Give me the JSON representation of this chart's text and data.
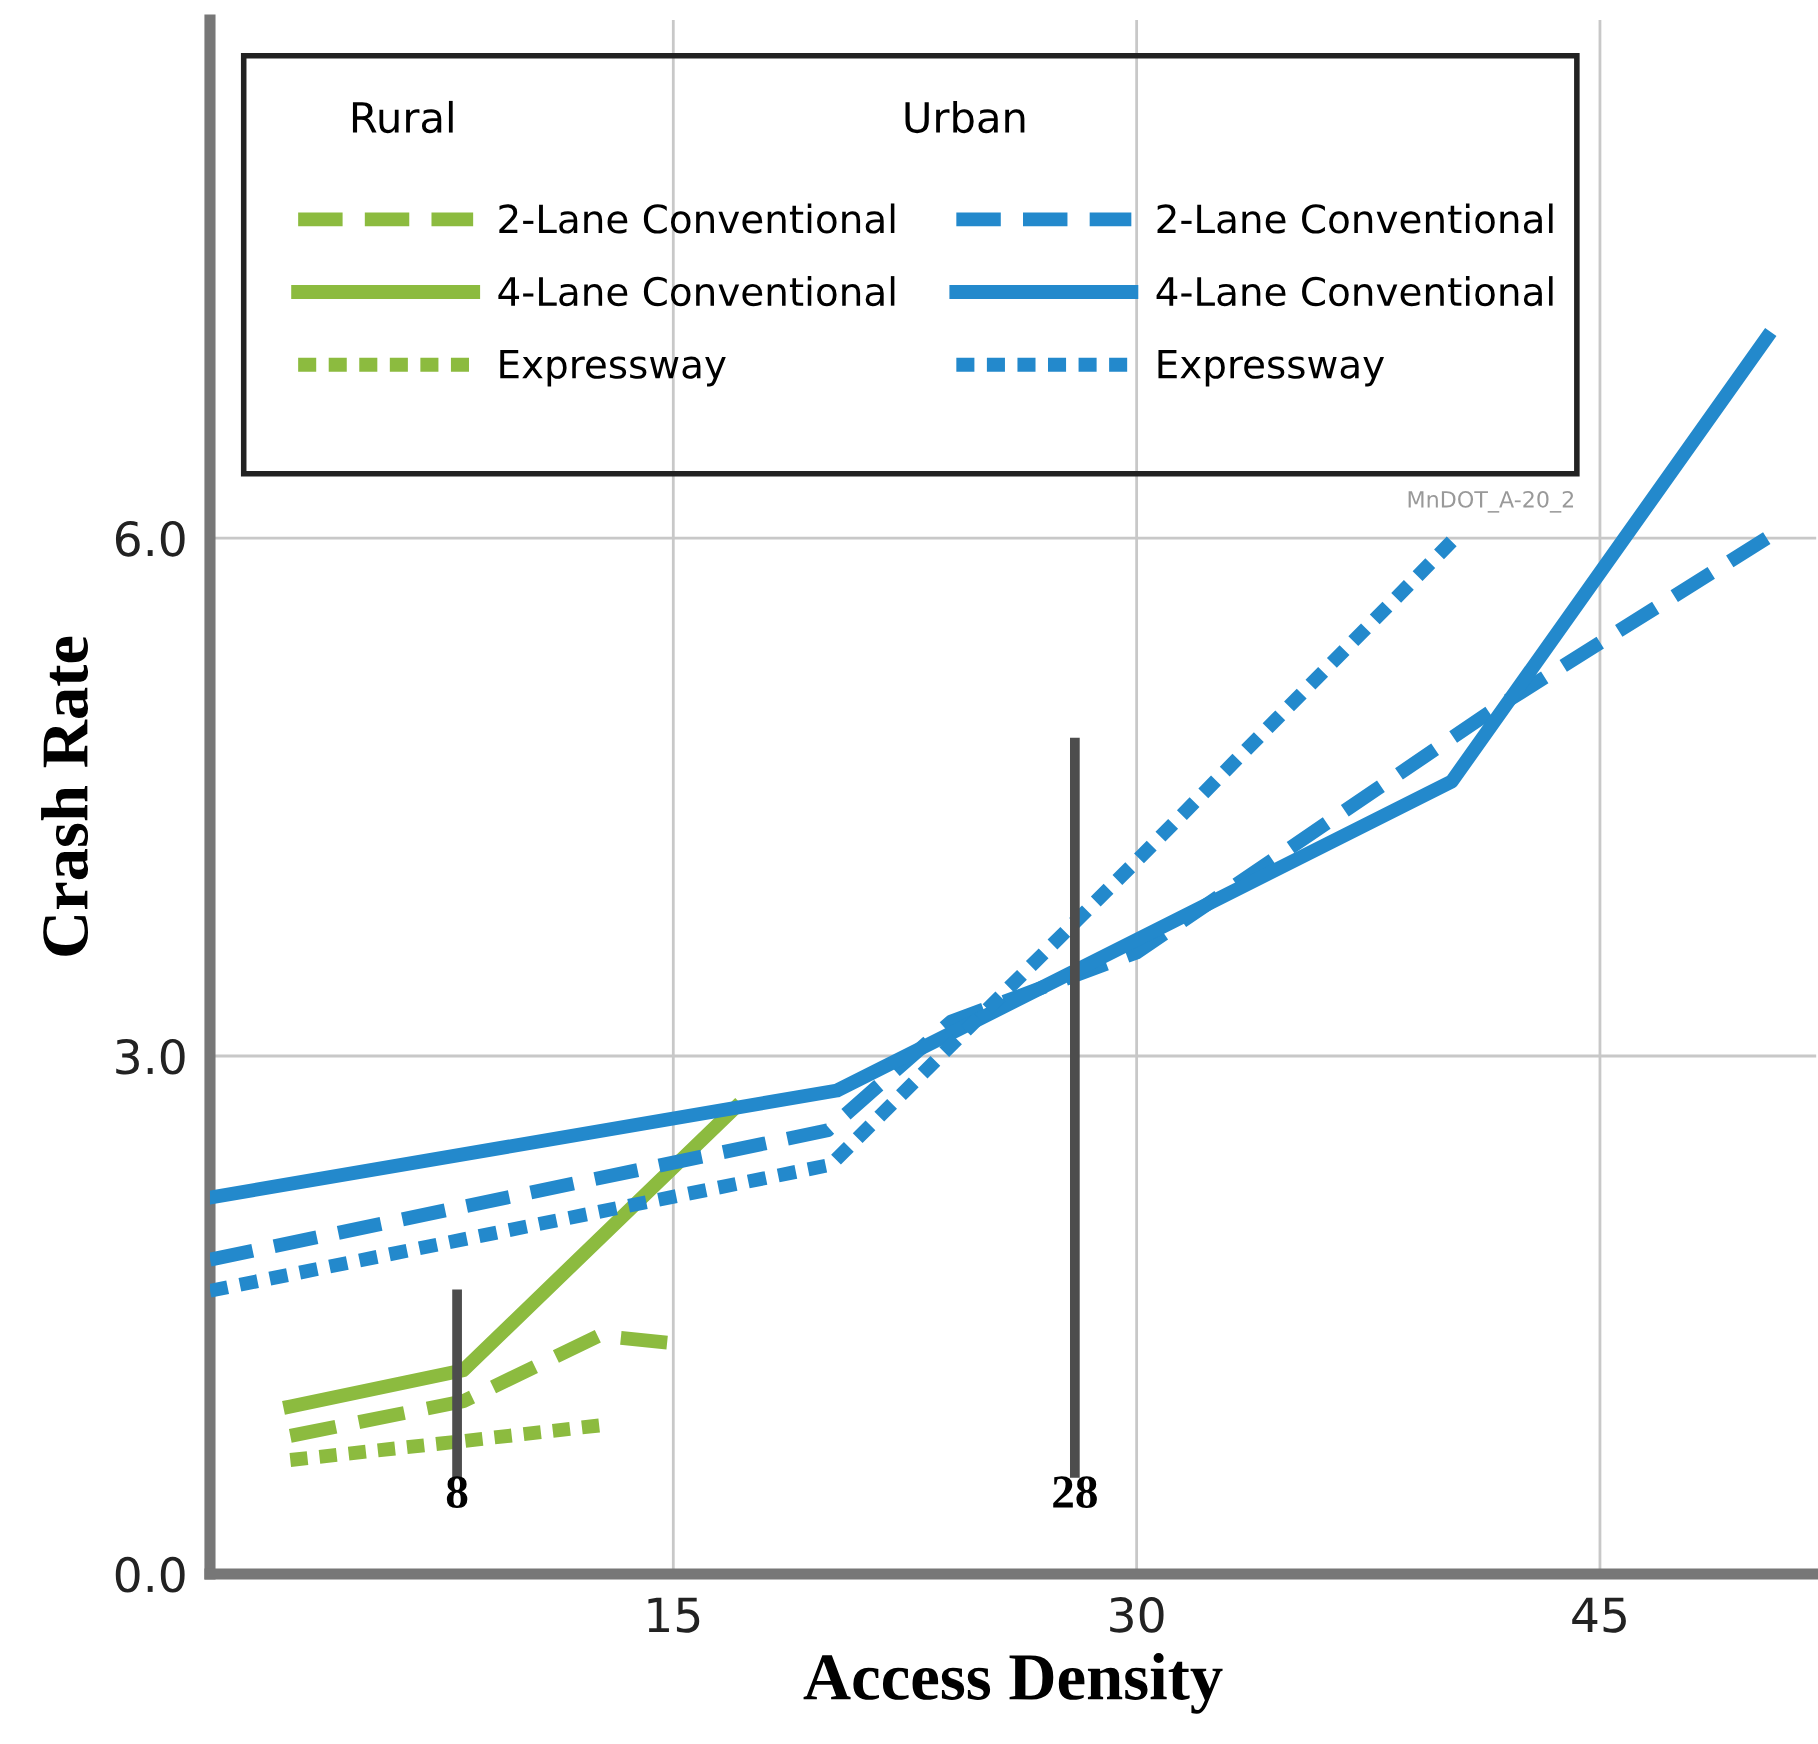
{
  "chart_data": {
    "type": "line",
    "xlabel": "Access Density",
    "ylabel": "Crash Rate",
    "xlim": [
      0,
      52
    ],
    "ylim": [
      0,
      9
    ],
    "xticks": [
      15,
      30,
      45
    ],
    "yticks": [
      {
        "value": 0,
        "label": "0.0"
      },
      {
        "value": 3,
        "label": "3.0"
      },
      {
        "value": 6,
        "label": "6.0"
      }
    ],
    "grid": true,
    "legend": "top left",
    "marker": "none",
    "series": [
      {
        "name": "2-Lane Conventional",
        "color": "#8cbb3f",
        "line_style": "dashed",
        "x": [
          2.6,
          8.2,
          12.6,
          14.8
        ],
        "values": [
          0.8,
          1.0,
          1.38,
          1.34
        ]
      },
      {
        "name": "4-Lane Conventional",
        "color": "#8cbb3f",
        "line_style": "solid",
        "x": [
          2.6,
          8.2,
          17
        ],
        "values": [
          0.97,
          1.18,
          2.7
        ]
      },
      {
        "name": "Expressway",
        "color": "#8cbb3f",
        "line_style": "dotted",
        "x": [
          2.6,
          8.2,
          12.6
        ],
        "values": [
          0.66,
          0.77,
          0.86
        ]
      },
      {
        "name": "2-Lane Conventional",
        "color": "#2389cc",
        "line_style": "dashed",
        "x": [
          0,
          20,
          24,
          30,
          41.5,
          50.4
        ],
        "values": [
          1.82,
          2.57,
          3.2,
          3.6,
          5.0,
          6.0
        ]
      },
      {
        "name": "4-Lane Conventional",
        "color": "#2389cc",
        "line_style": "solid",
        "x": [
          0,
          20.3,
          40.2,
          50.4
        ],
        "values": [
          2.18,
          2.8,
          4.59,
          7.16
        ]
      },
      {
        "name": "Expressway",
        "color": "#2389cc",
        "line_style": "dotted",
        "x": [
          0,
          20.1,
          30,
          40.2
        ],
        "values": [
          1.64,
          2.37,
          4.13,
          5.98
        ]
      }
    ],
    "ref_lines": [
      {
        "axis": "x",
        "value": 8,
        "label": "8",
        "color": "#4d4d4d"
      },
      {
        "axis": "x",
        "value": 28,
        "label": "28",
        "color": "#4d4d4d"
      }
    ],
    "annotations": [
      "Rural",
      "Urban",
      "MnDOT_A-20_2"
    ]
  }
}
